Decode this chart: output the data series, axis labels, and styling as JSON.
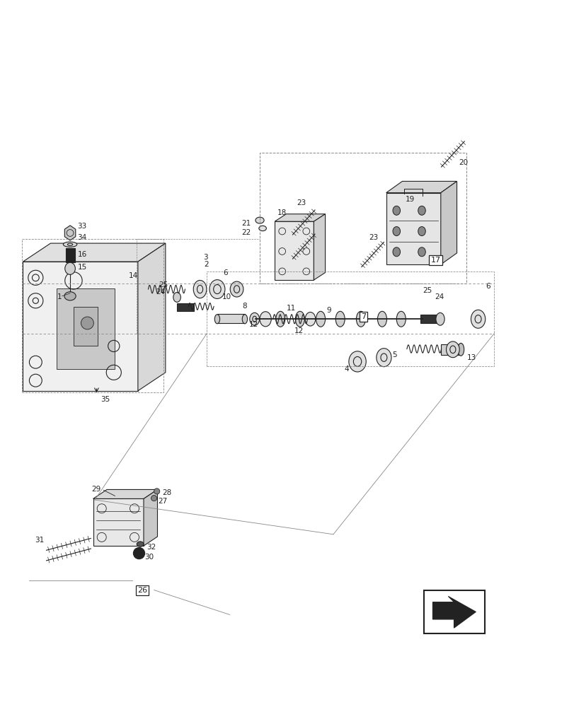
{
  "bg_color": "#ffffff",
  "line_color": "#222222",
  "fig_width": 8.12,
  "fig_height": 10.0,
  "dpi": 100
}
